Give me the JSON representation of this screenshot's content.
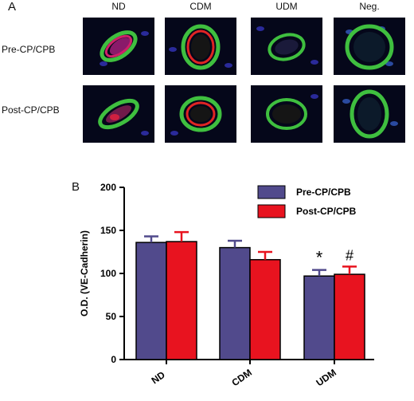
{
  "panel_a": {
    "letter": "A",
    "columns": [
      "ND",
      "CDM",
      "UDM",
      "Neg."
    ],
    "rows": [
      "Pre-CP/CPB",
      "Post-CP/CPB"
    ]
  },
  "panel_b": {
    "letter": "B"
  },
  "colors": {
    "pre": "#514a8c",
    "post": "#e8131f"
  },
  "chart_data": {
    "type": "bar",
    "categories": [
      "ND",
      "CDM",
      "UDM"
    ],
    "series": [
      {
        "name": "Pre-CP/CPB",
        "values": [
          136,
          130,
          97
        ],
        "error": [
          7,
          8,
          7
        ]
      },
      {
        "name": "Post-CP/CPB",
        "values": [
          137,
          116,
          99
        ],
        "error": [
          11,
          9,
          9
        ]
      }
    ],
    "ylabel": "O.D. (VE-Cadherin)",
    "xlabel": "",
    "ylim": [
      0,
      200
    ],
    "yticks": [
      0,
      50,
      100,
      150,
      200
    ],
    "annotations": [
      {
        "text": "*",
        "category": "UDM",
        "series": "Pre-CP/CPB"
      },
      {
        "text": "#",
        "category": "UDM",
        "series": "Post-CP/CPB"
      }
    ],
    "legend_position": "top-right",
    "grid": false
  }
}
